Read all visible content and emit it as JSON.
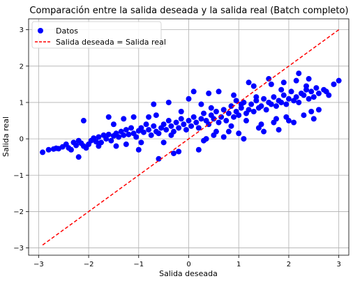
{
  "chart_data": {
    "type": "scatter",
    "title": "Comparación entre la salida deseada y la salida real (Batch completo)",
    "xlabel": "Salida deseada",
    "ylabel": "Salida real",
    "xlim": [
      -3.2,
      3.2
    ],
    "ylim": [
      -3.2,
      3.3
    ],
    "xticks": [
      -3,
      -2,
      -1,
      0,
      1,
      2,
      3
    ],
    "yticks": [
      -3,
      -2,
      -1,
      0,
      1,
      2,
      3
    ],
    "xtick_labels": [
      "−3",
      "−2",
      "−1",
      "0",
      "1",
      "2",
      "3"
    ],
    "ytick_labels": [
      "−3",
      "−2",
      "−1",
      "0",
      "1",
      "2",
      "3"
    ],
    "grid": true,
    "legend": {
      "placement": "top-left",
      "entries": [
        "Datos",
        "Salida deseada = Salida real"
      ]
    },
    "colors": {
      "points": "#0000ff",
      "identity_line": "#ff0000",
      "grid": "#b0b0b0"
    },
    "series": [
      {
        "name": "Datos",
        "kind": "scatter",
        "note_count": 1000,
        "x": [
          -2.92,
          -2.8,
          -2.7,
          -2.65,
          -2.6,
          -2.52,
          -2.45,
          -2.4,
          -2.35,
          -2.3,
          -2.25,
          -2.2,
          -2.15,
          -2.1,
          -2.05,
          -2.0,
          -1.95,
          -1.9,
          -1.85,
          -1.8,
          -1.75,
          -1.7,
          -1.65,
          -1.6,
          -1.55,
          -1.5,
          -1.45,
          -1.4,
          -1.35,
          -1.3,
          -1.25,
          -1.2,
          -1.15,
          -1.1,
          -1.05,
          -1.0,
          -0.95,
          -0.9,
          -0.85,
          -0.8,
          -0.75,
          -0.7,
          -0.65,
          -0.6,
          -0.55,
          -0.5,
          -0.45,
          -0.4,
          -0.35,
          -0.3,
          -0.25,
          -0.2,
          -0.15,
          -0.1,
          -0.05,
          0.0,
          0.05,
          0.1,
          0.15,
          0.2,
          0.25,
          0.3,
          0.35,
          0.4,
          0.45,
          0.5,
          0.55,
          0.6,
          0.65,
          0.7,
          0.75,
          0.8,
          0.85,
          0.9,
          0.95,
          1.0,
          1.05,
          1.1,
          1.15,
          1.2,
          1.25,
          1.3,
          1.35,
          1.4,
          1.45,
          1.5,
          1.55,
          1.6,
          1.65,
          1.7,
          1.75,
          1.8,
          1.85,
          1.9,
          1.95,
          2.0,
          2.05,
          2.1,
          2.15,
          2.2,
          2.25,
          2.3,
          2.35,
          2.4,
          2.45,
          2.5,
          2.55,
          2.6,
          2.7,
          2.8,
          2.9,
          3.0,
          -1.5,
          -1.8,
          -2.2,
          -1.0,
          -0.6,
          -0.3,
          0.2,
          0.5,
          0.8,
          1.1,
          1.4,
          1.7,
          2.0,
          2.3,
          2.6,
          -0.8,
          -0.4,
          0.1,
          0.6,
          1.2,
          1.6,
          2.2,
          -1.3,
          -0.7,
          0.0,
          0.4,
          0.9,
          1.3,
          1.9,
          2.4,
          2.75,
          -2.1,
          -1.6,
          -1.1,
          -0.5,
          0.3,
          0.7,
          1.0,
          1.5,
          1.8,
          2.1,
          2.5,
          -0.2,
          0.35,
          0.85,
          1.45,
          1.95,
          -1.45,
          -0.95,
          -0.15,
          0.45,
          1.05,
          1.65,
          2.15,
          -0.65,
          0.25,
          0.95,
          1.35,
          1.85,
          2.35,
          -1.25,
          -0.35,
          0.55,
          1.15,
          1.75,
          2.45
        ],
        "y": [
          -0.37,
          -0.3,
          -0.28,
          -0.26,
          -0.27,
          -0.22,
          -0.15,
          -0.25,
          -0.3,
          -0.1,
          -0.18,
          -0.05,
          -0.12,
          -0.2,
          -0.25,
          -0.15,
          -0.05,
          0.02,
          -0.08,
          0.05,
          -0.1,
          0.1,
          0.0,
          0.12,
          -0.05,
          0.08,
          0.15,
          0.05,
          0.2,
          0.1,
          0.25,
          0.12,
          0.3,
          0.15,
          0.05,
          0.22,
          0.3,
          0.18,
          0.4,
          0.25,
          0.1,
          0.35,
          0.2,
          0.15,
          0.3,
          0.4,
          0.25,
          0.5,
          0.35,
          0.2,
          0.45,
          0.3,
          0.55,
          0.4,
          0.25,
          0.5,
          0.35,
          0.6,
          0.45,
          0.3,
          0.55,
          0.7,
          0.5,
          0.4,
          0.65,
          0.55,
          0.75,
          0.45,
          0.6,
          0.8,
          0.5,
          0.7,
          0.9,
          0.6,
          0.75,
          0.65,
          0.85,
          1.0,
          0.7,
          0.8,
          0.95,
          0.75,
          1.05,
          0.85,
          0.9,
          1.1,
          0.8,
          1.0,
          0.95,
          1.15,
          0.9,
          1.05,
          1.0,
          1.2,
          0.95,
          1.1,
          1.3,
          1.05,
          1.15,
          1.0,
          1.25,
          1.2,
          1.35,
          1.1,
          1.3,
          1.15,
          1.4,
          1.25,
          1.35,
          1.2,
          1.5,
          1.6,
          0.4,
          -0.2,
          -0.5,
          -0.3,
          -0.55,
          -0.4,
          -0.3,
          0.1,
          0.2,
          0.0,
          0.3,
          0.45,
          0.5,
          0.65,
          0.8,
          0.6,
          1.0,
          1.3,
          1.3,
          1.55,
          1.65,
          1.8,
          0.55,
          0.95,
          1.1,
          1.25,
          1.2,
          1.45,
          1.55,
          1.65,
          1.3,
          0.5,
          0.6,
          0.6,
          -0.1,
          -0.05,
          0.05,
          0.15,
          0.2,
          0.25,
          0.45,
          0.55,
          -0.35,
          0.0,
          0.35,
          0.4,
          0.6,
          -0.2,
          -0.1,
          0.75,
          0.85,
          0.95,
          1.5,
          1.6,
          0.65,
          0.95,
          1.05,
          1.15,
          1.35,
          1.45,
          -0.15,
          0.1,
          0.2,
          0.5,
          0.55,
          0.75
        ]
      },
      {
        "name": "Salida deseada = Salida real",
        "kind": "line",
        "style": "dashed",
        "x": [
          -2.92,
          3.0
        ],
        "y": [
          -2.92,
          3.0
        ]
      }
    ]
  }
}
